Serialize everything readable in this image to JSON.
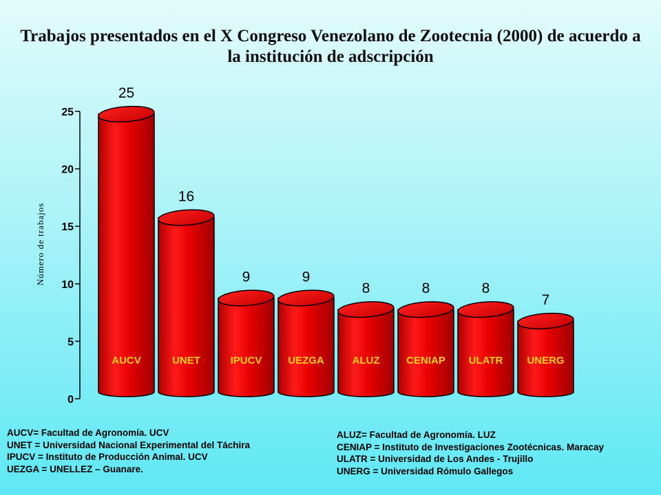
{
  "title": "Trabajos presentados en el X Congreso Venezolano de Zootecnia (2000) de acuerdo a la institución de adscripción",
  "chart_data": {
    "type": "bar",
    "title": "Trabajos presentados en el X Congreso Venezolano de Zootecnia (2000) de acuerdo a la institución de adscripción",
    "xlabel": "",
    "ylabel": "Número de trabajos",
    "categories": [
      "AUCV",
      "UNET",
      "IPUCV",
      "UEZGA",
      "ALUZ",
      "CENIAP",
      "ULATR",
      "UNERG"
    ],
    "values": [
      25,
      16,
      9,
      9,
      8,
      8,
      8,
      7
    ],
    "ylim": [
      0,
      25
    ],
    "yticks": [
      0,
      5,
      10,
      15,
      20,
      25
    ],
    "bar_color": "#e30000",
    "category_label_color": "#ffd11a",
    "grid": false,
    "legend": "none"
  },
  "legend_left": [
    "AUCV= Facultad de Agronomía. UCV",
    "UNET = Universidad Nacional Experimental del Táchira",
    "IPUCV = Instituto de Producción Animal. UCV",
    "UEZGA = UNELLEZ – Guanare."
  ],
  "legend_right": [
    "ALUZ= Facultad de Agronomía.  LUZ",
    "CENIAP = Instituto de Investigaciones Zootécnicas. Maracay",
    "ULATR = Universidad de Los Andes -  Trujillo",
    "UNERG = Universidad Rómulo Gallegos"
  ]
}
